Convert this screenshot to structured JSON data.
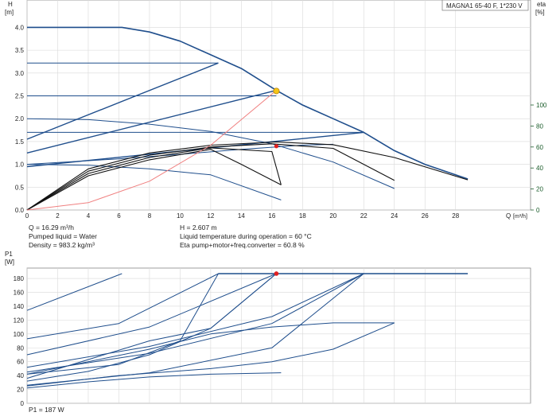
{
  "chart_data": [
    {
      "type": "line",
      "title": "",
      "model_label": "MAGNA1 65-40 F, 1*230 V",
      "y_axis_name": "H",
      "y_axis_unit": "[m]",
      "y2_axis_name": "eta",
      "y2_axis_unit": "[%]",
      "x_axis_name": "Q",
      "x_axis_unit": "[m³/h]",
      "xlim": [
        0,
        32.9
      ],
      "ylim": [
        0,
        4.6
      ],
      "y2lim": [
        0,
        100
      ],
      "x_ticks": [
        "0",
        "2",
        "4",
        "6",
        "8",
        "10",
        "12",
        "14",
        "16",
        "18",
        "20",
        "22",
        "24",
        "26",
        "28"
      ],
      "y_ticks": [
        "0.0",
        "0.5",
        "1.0",
        "1.5",
        "2.0",
        "2.5",
        "3.0",
        "3.5",
        "4.0"
      ],
      "y2_ticks": [
        "0",
        "20",
        "40",
        "60",
        "80",
        "100"
      ],
      "grid": true,
      "series": [
        {
          "role": "qh-max",
          "color": "#1f4e8c",
          "points": [
            [
              0,
              4.0
            ],
            [
              6.2,
              4.0
            ],
            [
              8,
              3.9
            ],
            [
              10,
              3.7
            ],
            [
              12,
              3.4
            ],
            [
              14,
              3.1
            ],
            [
              16.29,
              2.62
            ],
            [
              18,
              2.3
            ],
            [
              20,
              2.0
            ],
            [
              22,
              1.7
            ],
            [
              24,
              1.3
            ],
            [
              26,
              1.0
            ],
            [
              28.8,
              0.68
            ]
          ]
        },
        {
          "role": "qh-const",
          "color": "#1f4e8c",
          "points": [
            [
              0,
              3.22
            ],
            [
              12.5,
              3.22
            ]
          ]
        },
        {
          "role": "qh-const",
          "color": "#1f4e8c",
          "points": [
            [
              0,
              2.5
            ],
            [
              16.29,
              2.5
            ]
          ]
        },
        {
          "role": "qh-const",
          "color": "#1f4e8c",
          "points": [
            [
              0,
              1.7
            ],
            [
              22,
              1.7
            ]
          ]
        },
        {
          "role": "qh-prop",
          "color": "#1f4e8c",
          "points": [
            [
              0,
              1.55
            ],
            [
              12.5,
              3.22
            ]
          ]
        },
        {
          "role": "qh-prop",
          "color": "#1f4e8c",
          "points": [
            [
              0,
              1.25
            ],
            [
              16.29,
              2.62
            ]
          ]
        },
        {
          "role": "qh-prop",
          "color": "#1f4e8c",
          "points": [
            [
              0,
              0.95
            ],
            [
              22,
              1.7
            ]
          ]
        },
        {
          "role": "qh-speed",
          "color": "#1f4e8c",
          "points": [
            [
              0,
              2.0
            ],
            [
              4,
              1.98
            ],
            [
              8,
              1.88
            ],
            [
              12,
              1.72
            ],
            [
              16,
              1.45
            ],
            [
              20,
              1.05
            ],
            [
              24,
              0.47
            ]
          ]
        },
        {
          "role": "qh-speed",
          "color": "#1f4e8c",
          "points": [
            [
              0,
              1.0
            ],
            [
              4,
              0.98
            ],
            [
              8,
              0.9
            ],
            [
              12,
              0.77
            ],
            [
              16.6,
              0.22
            ]
          ]
        },
        {
          "role": "qh-speed",
          "color": "#1f4e8c",
          "points": [
            [
              0,
              1.0
            ],
            [
              6,
              1.12
            ],
            [
              10,
              1.22
            ],
            [
              14,
              1.33
            ],
            [
              18,
              1.42
            ],
            [
              20,
              1.44
            ]
          ]
        },
        {
          "role": "eta",
          "color": "#111111",
          "points": [
            [
              0,
              0
            ],
            [
              4,
              0.85
            ],
            [
              8,
              1.2
            ],
            [
              12,
              1.38
            ],
            [
              16,
              1.45
            ],
            [
              20,
              1.35
            ],
            [
              24,
              0.65
            ]
          ]
        },
        {
          "role": "eta",
          "color": "#111111",
          "points": [
            [
              0,
              0
            ],
            [
              4,
              0.9
            ],
            [
              8,
              1.25
            ],
            [
              12,
              1.42
            ],
            [
              16.29,
              1.49
            ],
            [
              20,
              1.43
            ],
            [
              24,
              1.15
            ],
            [
              28.8,
              0.66
            ]
          ]
        },
        {
          "role": "eta",
          "color": "#111111",
          "points": [
            [
              0,
              0
            ],
            [
              4,
              0.8
            ],
            [
              8,
              1.15
            ],
            [
              12,
              1.36
            ],
            [
              16,
              1.28
            ],
            [
              16.6,
              0.55
            ]
          ]
        },
        {
          "role": "eta",
          "color": "#111111",
          "points": [
            [
              0,
              0
            ],
            [
              4,
              0.75
            ],
            [
              8,
              1.1
            ],
            [
              12,
              1.33
            ],
            [
              14,
              1.0
            ],
            [
              16.6,
              0.55
            ]
          ]
        },
        {
          "role": "system-curve",
          "color": "#f08080",
          "points": [
            [
              0,
              0
            ],
            [
              4,
              0.16
            ],
            [
              8,
              0.63
            ],
            [
              12,
              1.42
            ],
            [
              16.29,
              2.62
            ]
          ]
        }
      ],
      "operating_point": {
        "Q": 16.29,
        "H": 2.607
      },
      "eta_point": {
        "Q": 16.29,
        "eta_pct": 60.8
      }
    },
    {
      "type": "line",
      "title": "",
      "y_axis_name": "P1",
      "y_axis_unit": "[W]",
      "x_axis_name": "",
      "xlim": [
        0,
        32.9
      ],
      "ylim": [
        0,
        195
      ],
      "y_ticks": [
        "0",
        "20",
        "40",
        "60",
        "80",
        "100",
        "120",
        "140",
        "160",
        "180"
      ],
      "grid": true,
      "series": [
        {
          "role": "p1-max",
          "color": "#1f4e8c",
          "points": [
            [
              12.5,
              187
            ],
            [
              28.8,
              187
            ]
          ]
        },
        {
          "role": "p1",
          "color": "#1f4e8c",
          "points": [
            [
              0,
              134
            ],
            [
              6.2,
              187
            ]
          ]
        },
        {
          "role": "p1",
          "color": "#1f4e8c",
          "points": [
            [
              0,
              93
            ],
            [
              6,
              115
            ],
            [
              12.5,
              187
            ]
          ]
        },
        {
          "role": "p1",
          "color": "#1f4e8c",
          "points": [
            [
              0,
              70
            ],
            [
              8,
              110
            ],
            [
              16.29,
              187
            ]
          ]
        },
        {
          "role": "p1",
          "color": "#1f4e8c",
          "points": [
            [
              0,
              52
            ],
            [
              8,
              82
            ],
            [
              16,
              125
            ],
            [
              22,
              187
            ]
          ]
        },
        {
          "role": "p1",
          "color": "#1f4e8c",
          "points": [
            [
              0,
              45
            ],
            [
              8,
              72
            ],
            [
              16,
              115
            ],
            [
              22,
              187
            ]
          ]
        },
        {
          "role": "p1",
          "color": "#1f4e8c",
          "points": [
            [
              0,
              42
            ],
            [
              6,
              56
            ],
            [
              10,
              90
            ],
            [
              12.5,
              187
            ]
          ]
        },
        {
          "role": "p1",
          "color": "#1f4e8c",
          "points": [
            [
              0,
              32
            ],
            [
              4,
              46
            ],
            [
              8,
              70
            ],
            [
              12,
              108
            ],
            [
              16.29,
              187
            ]
          ]
        },
        {
          "role": "p1",
          "color": "#1f4e8c",
          "points": [
            [
              0,
              36
            ],
            [
              8,
              90
            ],
            [
              12,
              108
            ],
            [
              16.29,
              187
            ]
          ]
        },
        {
          "role": "p1",
          "color": "#1f4e8c",
          "points": [
            [
              0,
              26
            ],
            [
              8,
              44
            ],
            [
              16,
              80
            ],
            [
              22,
              187
            ]
          ]
        },
        {
          "role": "p1",
          "color": "#1f4e8c",
          "points": [
            [
              0,
              25
            ],
            [
              6,
              40
            ],
            [
              12,
              50
            ],
            [
              16,
              60
            ],
            [
              20,
              78
            ],
            [
              24,
              116
            ]
          ]
        },
        {
          "role": "p1",
          "color": "#1f4e8c",
          "points": [
            [
              0,
              42
            ],
            [
              8,
              78
            ],
            [
              12,
              100
            ],
            [
              16,
              110
            ],
            [
              20,
              116
            ],
            [
              24,
              116
            ]
          ]
        },
        {
          "role": "p1",
          "color": "#1f4e8c",
          "points": [
            [
              0,
              22
            ],
            [
              4,
              31
            ],
            [
              8,
              38
            ],
            [
              12,
              42
            ],
            [
              16.6,
              44
            ]
          ]
        }
      ],
      "operating_point": {
        "Q": 16.29,
        "P1": 187
      }
    }
  ],
  "info": {
    "q_line": "Q = 16.29 m³/h",
    "liquid_line": "Pumped liquid = Water",
    "density_line": "Density = 983.2 kg/m³",
    "h_line": "H = 2.607 m",
    "temp_line": "Liquid temperature during operation = 60 °C",
    "eta_line": "Eta pump+motor+freq.converter = 60.8 %",
    "p1_line": "P1 = 187 W"
  },
  "colors": {
    "curve": "#1f4e8c",
    "eta": "#111111",
    "system": "#f08080",
    "grid": "#d9d9d9",
    "op_hq": "#f5c518",
    "op_red": "#e02020"
  }
}
